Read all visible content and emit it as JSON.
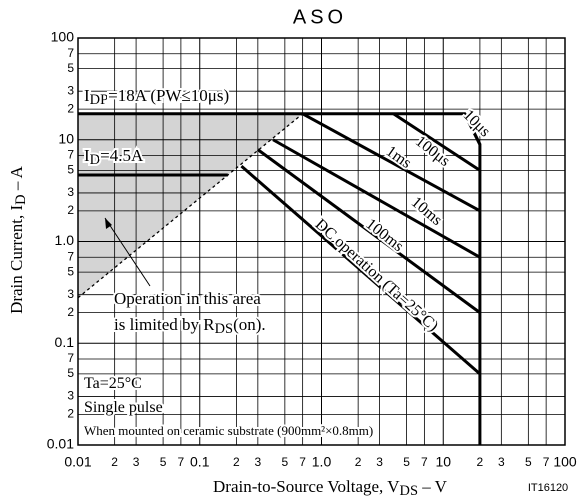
{
  "chart_data": {
    "type": "line",
    "title": "ASO",
    "x_label": {
      "text": "Drain-to-Source Voltage, V",
      "sub": "DS",
      "rest": " – V"
    },
    "y_label": {
      "text": "Drain Current, I",
      "sub": "D",
      "rest": " – A"
    },
    "code": "IT16120",
    "log_x": true,
    "log_y": true,
    "grid": true,
    "xlim": [
      0.01,
      100
    ],
    "ylim": [
      0.01,
      100
    ],
    "xticks": [
      0.01,
      {
        "value": 0.02,
        "label": "2"
      },
      {
        "value": 0.03,
        "label": "3"
      },
      {
        "value": 0.05,
        "label": "5"
      },
      {
        "value": 0.07,
        "label": "7"
      },
      0.1,
      {
        "value": 0.2,
        "label": "2"
      },
      {
        "value": 0.3,
        "label": "3"
      },
      {
        "value": 0.5,
        "label": "5"
      },
      {
        "value": 0.7,
        "label": "7"
      },
      {
        "value": 1,
        "label": "1.0"
      },
      {
        "value": 2,
        "label": "2"
      },
      {
        "value": 3,
        "label": "3"
      },
      {
        "value": 5,
        "label": "5"
      },
      {
        "value": 7,
        "label": "7"
      },
      10,
      {
        "value": 20,
        "label": "2"
      },
      {
        "value": 30,
        "label": "3"
      },
      {
        "value": 50,
        "label": "5"
      },
      {
        "value": 70,
        "label": "7"
      },
      100
    ],
    "yticks": [
      0.01,
      {
        "value": 0.02,
        "label": "2"
      },
      {
        "value": 0.03,
        "label": "3"
      },
      {
        "value": 0.05,
        "label": "5"
      },
      {
        "value": 0.07,
        "label": "7"
      },
      0.1,
      {
        "value": 0.2,
        "label": "2"
      },
      {
        "value": 0.3,
        "label": "3"
      },
      {
        "value": 0.5,
        "label": "5"
      },
      {
        "value": 0.7,
        "label": "7"
      },
      {
        "value": 1,
        "label": "1.0"
      },
      {
        "value": 2,
        "label": "2"
      },
      {
        "value": 3,
        "label": "3"
      },
      {
        "value": 5,
        "label": "5"
      },
      {
        "value": 7,
        "label": "7"
      },
      10,
      {
        "value": 20,
        "label": "2"
      },
      {
        "value": 30,
        "label": "3"
      },
      {
        "value": 50,
        "label": "5"
      },
      {
        "value": 70,
        "label": "7"
      },
      100
    ],
    "series": [
      {
        "color": "#000000",
        "x": [
          0.01,
          15,
          20,
          20
        ],
        "values": [
          18,
          18,
          9,
          0.01
        ]
      },
      {
        "name": "10μs",
        "color": "#000000",
        "x": [
          15,
          20
        ],
        "values": [
          18,
          9
        ]
      },
      {
        "name": "100μs",
        "color": "#000000",
        "x": [
          3.9,
          20
        ],
        "values": [
          18,
          5
        ]
      },
      {
        "name": "1ms",
        "color": "#000000",
        "x": [
          0.7,
          20
        ],
        "values": [
          18,
          2
        ]
      },
      {
        "name": "10ms",
        "color": "#000000",
        "x": [
          0.4,
          20
        ],
        "values": [
          10,
          0.7
        ]
      },
      {
        "name": "100ms",
        "color": "#000000",
        "x": [
          0.3,
          20
        ],
        "values": [
          8,
          0.2
        ]
      },
      {
        "name": "DC operation (Ta=25°C)",
        "color": "#000000",
        "x": [
          0.22,
          20
        ],
        "values": [
          5.5,
          0.05
        ]
      },
      {
        "color": "#000000",
        "x": [
          0.01,
          0.17
        ],
        "values": [
          4.5,
          4.5
        ]
      },
      {
        "color": "#000000",
        "style": "dashed",
        "fill": "#d4d4d4",
        "x": [
          0.01,
          0.7
        ],
        "values": [
          0.28,
          18
        ]
      }
    ],
    "annotations": [
      {
        "text": "I",
        "sub": "DP",
        "rest": "=18A (PW≤10μs)"
      },
      {
        "text": "I",
        "sub": "D",
        "rest": "=4.5A"
      },
      {
        "text": "Operation in this area"
      },
      {
        "text": "is limited by R",
        "sub": "DS",
        "rest": "(on)."
      },
      {
        "text": "Ta=25°C"
      },
      {
        "text": "Single pulse"
      },
      {
        "text": "When mounted on ceramic substrate (900mm²×0.8mm)"
      }
    ]
  }
}
